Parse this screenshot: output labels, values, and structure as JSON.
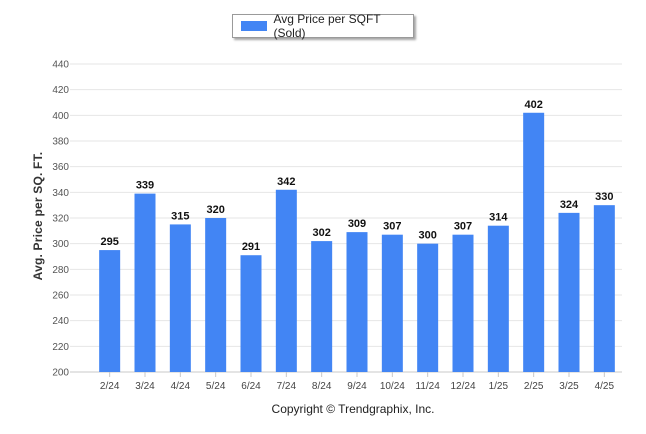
{
  "chart_data": {
    "type": "bar",
    "categories": [
      "2/24",
      "3/24",
      "4/24",
      "5/24",
      "6/24",
      "7/24",
      "8/24",
      "9/24",
      "10/24",
      "11/24",
      "12/24",
      "1/25",
      "2/25",
      "3/25",
      "4/25"
    ],
    "series": [
      {
        "name": "Avg Price per SQFT (Sold)",
        "values": [
          295,
          339,
          315,
          320,
          291,
          342,
          302,
          309,
          307,
          300,
          307,
          314,
          402,
          324,
          330
        ],
        "color": "#4285f4"
      }
    ],
    "ylabel": "Avg. Price per SQ. FT.",
    "xlabel": "",
    "ylim": [
      200,
      440
    ],
    "yticks": [
      200,
      220,
      240,
      260,
      280,
      300,
      320,
      340,
      360,
      380,
      400,
      420,
      440
    ],
    "grid": true,
    "legend": "top-center"
  },
  "footer": "Copyright © Trendgraphix, Inc."
}
